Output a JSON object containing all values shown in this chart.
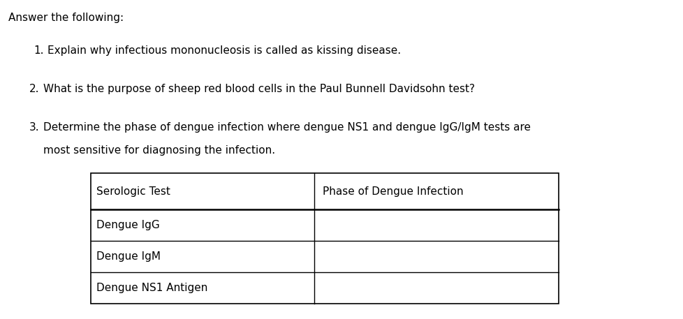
{
  "title": "Answer the following:",
  "q1": "Explain why infectious mononucleosis is called as kissing disease.",
  "q2": "What is the purpose of sheep red blood cells in the Paul Bunnell Davidsohn test?",
  "q3a": "Determine the phase of dengue infection where dengue NS1 and dengue IgG/IgM tests are",
  "q3b": "most sensitive for diagnosing the infection.",
  "table_header": [
    "Serologic Test",
    "Phase of Dengue Infection"
  ],
  "table_rows": [
    [
      "Dengue IgG",
      ""
    ],
    [
      "Dengue IgM",
      ""
    ],
    [
      "Dengue NS1 Antigen",
      ""
    ]
  ],
  "bg_color": "#ffffff",
  "text_color": "#000000",
  "font_size": 11.0
}
